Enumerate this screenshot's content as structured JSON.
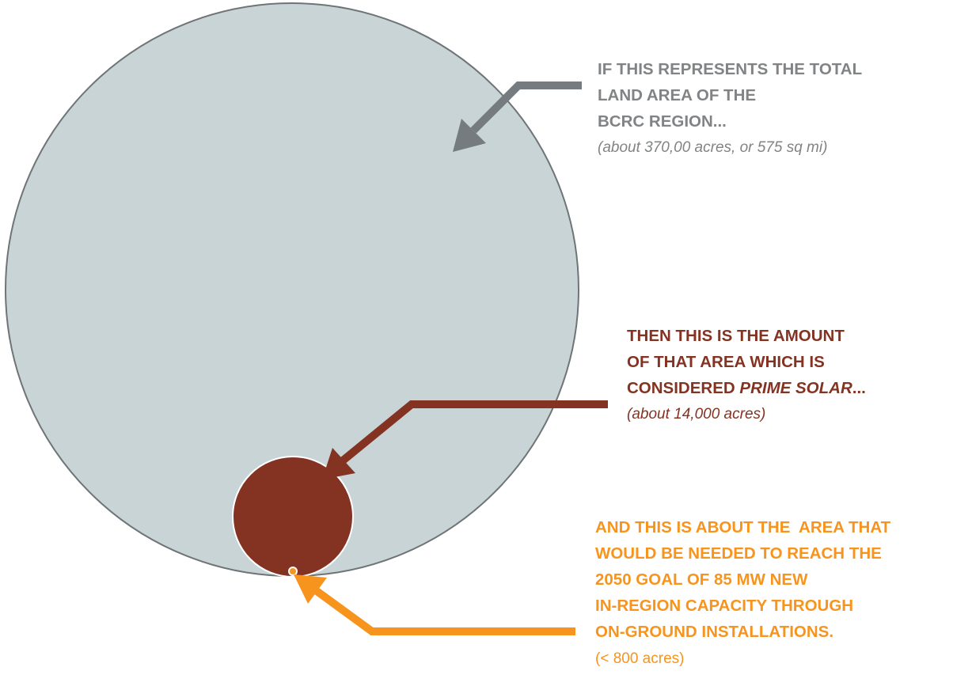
{
  "labels": [
    {
      "lines": [
        "IF THIS REPRESENTS THE TOTAL",
        "LAND AREA OF THE",
        "BCRC REGION..."
      ],
      "note": "(about 370,00 acres, or 575 sq mi)"
    },
    {
      "lines": [
        "THEN THIS IS THE AMOUNT",
        "OF THAT AREA WHICH IS"
      ],
      "last_line": {
        "prefix": "CONSIDERED ",
        "emphasis": "PRIME SOLAR",
        "suffix": "..."
      },
      "note": "(about 14,000 acres)"
    },
    {
      "lines": [
        "AND THIS IS ABOUT THE  AREA THAT",
        "WOULD BE NEEDED TO REACH THE",
        "2050 GOAL OF 85 MW NEW",
        "IN-REGION CAPACITY THROUGH",
        "ON-GROUND INSTALLATIONS."
      ],
      "note": "(< 800 acres)"
    }
  ]
}
